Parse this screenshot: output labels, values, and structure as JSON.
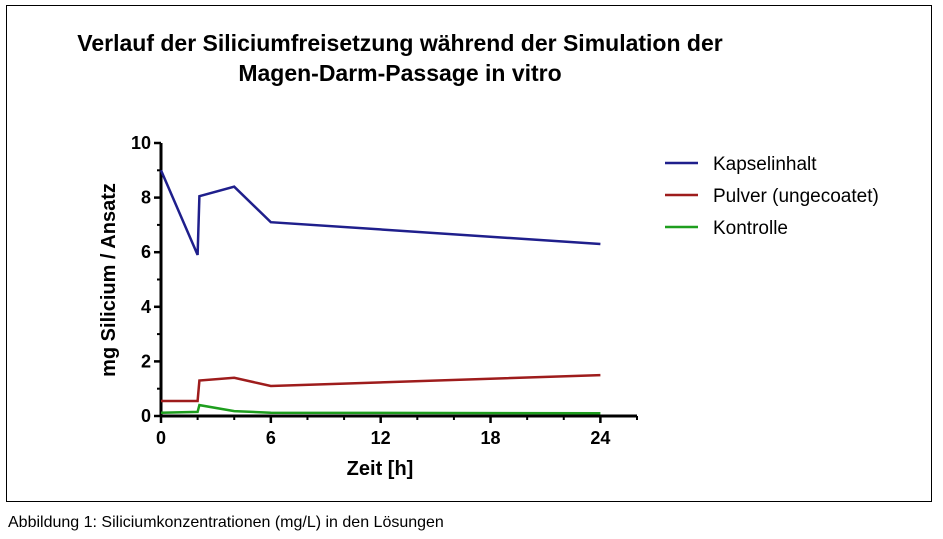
{
  "caption": "Abbildung 1: Siliciumkonzentrationen (mg/L) in den Lösungen",
  "chart_data": {
    "type": "line",
    "title_lines": [
      "Verlauf der Siliciumfreisetzung während der Simulation der",
      "Magen-Darm-Passage in vitro"
    ],
    "xlabel": "Zeit [h]",
    "ylabel": "mg Silicium / Ansatz",
    "xlim": [
      0,
      26
    ],
    "ylim": [
      0,
      10
    ],
    "xticks": [
      0,
      6,
      12,
      18,
      24
    ],
    "yticks": [
      0,
      2,
      4,
      6,
      8,
      10
    ],
    "grid": false,
    "legend_position": "top-right",
    "series": [
      {
        "name": "Kapselinhalt",
        "color": "#1f1f8c",
        "x": [
          0,
          2,
          2.1,
          4,
          6,
          24
        ],
        "y": [
          9.0,
          5.9,
          8.05,
          8.4,
          7.1,
          6.3
        ]
      },
      {
        "name": "Pulver (ungecoatet)",
        "color": "#9e1c1c",
        "x": [
          0,
          2,
          2.1,
          4,
          6,
          24
        ],
        "y": [
          0.55,
          0.55,
          1.3,
          1.4,
          1.1,
          1.5
        ]
      },
      {
        "name": "Kontrolle",
        "color": "#1e9e1e",
        "x": [
          0,
          2,
          2.1,
          4,
          6,
          24
        ],
        "y": [
          0.12,
          0.15,
          0.4,
          0.18,
          0.12,
          0.1
        ]
      }
    ]
  }
}
